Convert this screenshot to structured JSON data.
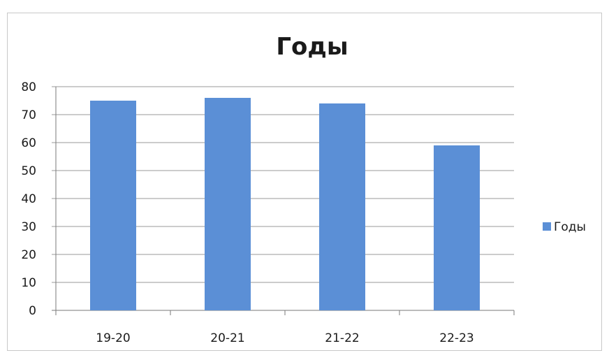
{
  "chart_data": {
    "type": "bar",
    "title": "Годы",
    "categories": [
      "19-20",
      "20-21",
      "21-22",
      "22-23"
    ],
    "series": [
      {
        "name": "Годы",
        "values": [
          75,
          76,
          74,
          59
        ]
      }
    ],
    "ylim": [
      0,
      80
    ],
    "yticks": [
      0,
      10,
      20,
      30,
      40,
      50,
      60,
      70,
      80
    ],
    "grid": true,
    "legend_position": "right",
    "colors": {
      "bar": "#5b8fd6",
      "grid": "#9a9a9a",
      "axis": "#7a7a7a"
    }
  }
}
